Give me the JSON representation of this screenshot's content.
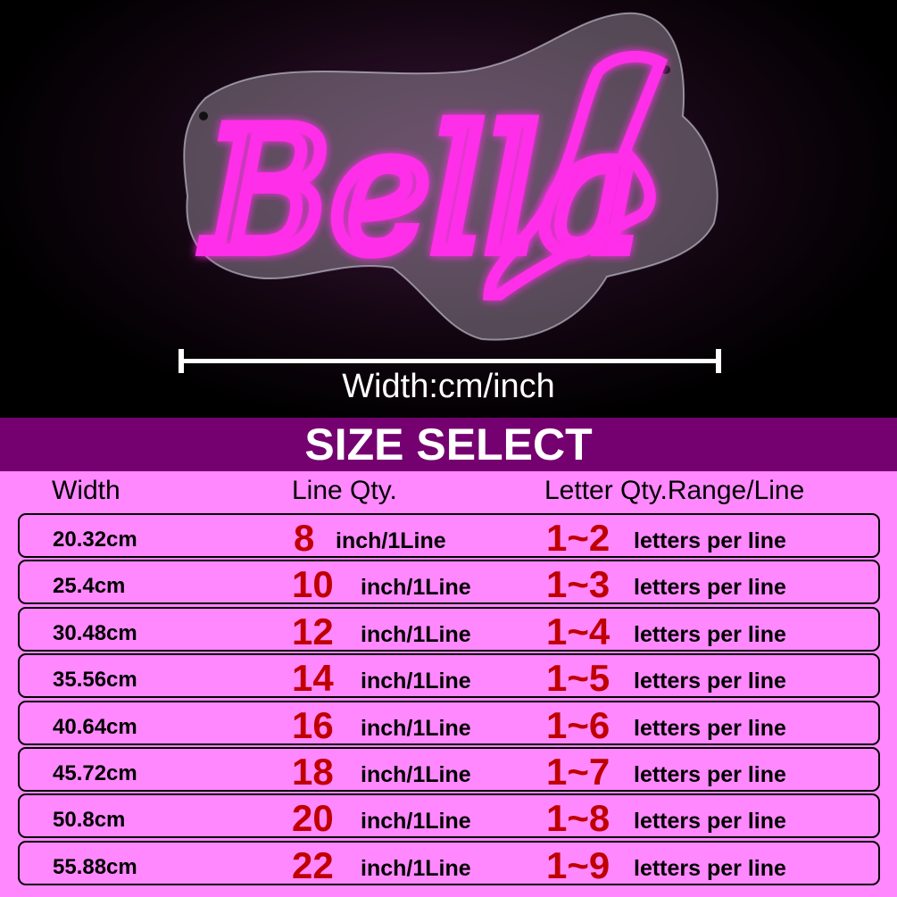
{
  "sign": {
    "text": "Bella",
    "neon_color": "#ff2ee8"
  },
  "measure_label": "Width:cm/inch",
  "title": "SIZE SELECT",
  "colors": {
    "band": "#750070",
    "table_bg": "#ff88ff",
    "accent": "#c00000"
  },
  "headers": {
    "width": "Width",
    "line_qty": "Line Qty.",
    "letter_qty": "Letter Qty.Range/Line"
  },
  "rows": [
    {
      "cm": "20.32cm",
      "inch": "8",
      "inch_unit": "inch/1Line",
      "range": "1~2",
      "range_unit": "letters per line"
    },
    {
      "cm": "25.4cm",
      "inch": "10",
      "inch_unit": "inch/1Line",
      "range": "1~3",
      "range_unit": "letters per line"
    },
    {
      "cm": "30.48cm",
      "inch": "12",
      "inch_unit": "inch/1Line",
      "range": "1~4",
      "range_unit": "letters per line"
    },
    {
      "cm": "35.56cm",
      "inch": "14",
      "inch_unit": "inch/1Line",
      "range": "1~5",
      "range_unit": "letters per line"
    },
    {
      "cm": "40.64cm",
      "inch": "16",
      "inch_unit": "inch/1Line",
      "range": "1~6",
      "range_unit": "letters per line"
    },
    {
      "cm": "45.72cm",
      "inch": "18",
      "inch_unit": "inch/1Line",
      "range": "1~7",
      "range_unit": "letters per line"
    },
    {
      "cm": "50.8cm",
      "inch": "20",
      "inch_unit": "inch/1Line",
      "range": "1~8",
      "range_unit": "letters per line"
    },
    {
      "cm": "55.88cm",
      "inch": "22",
      "inch_unit": "inch/1Line",
      "range": "1~9",
      "range_unit": "letters per line"
    }
  ]
}
